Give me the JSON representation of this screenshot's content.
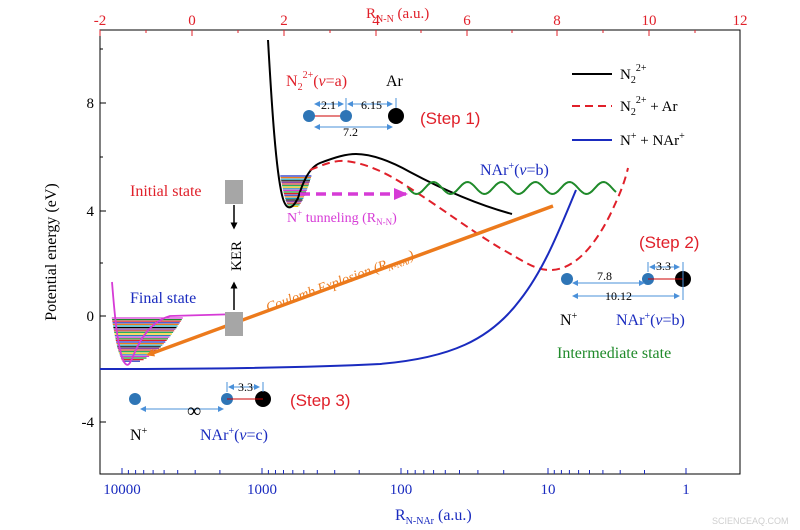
{
  "top_axis": {
    "label": "R",
    "label_sub": "N-N",
    "label_suffix": " (a.u.)",
    "color": "#e0202a",
    "ticks": [
      "-2",
      "0",
      "2",
      "4",
      "6",
      "8",
      "10",
      "12"
    ]
  },
  "bottom_axis": {
    "label": "R",
    "label_sub": "N-NAr",
    "label_suffix": " (a.u.)",
    "color": "#1a2bbf",
    "ticks": [
      "10000",
      "1000",
      "100",
      "10",
      "1"
    ]
  },
  "left_axis": {
    "label": "Potential energy (eV)",
    "ticks": [
      "8",
      "4",
      "0",
      "-4"
    ]
  },
  "legend": {
    "n2": {
      "base": "N",
      "sub": "2",
      "sup": "2+"
    },
    "n2ar": {
      "base": "N",
      "sub": "2",
      "sup": "2+",
      "suffix": " + Ar"
    },
    "nnar": {
      "text1": "N",
      "sup1": "+",
      "text2": " + NAr",
      "sup2": "+"
    }
  },
  "labels": {
    "step1": "(Step 1)",
    "step2": "(Step 2)",
    "step3": "(Step 3)",
    "initial_state": "Initial state",
    "final_state": "Final state",
    "intermediate_state": "Intermediate state",
    "kerl": "KER",
    "coulomb_main": "Coulomb Explosion (R",
    "coulomb_sub": "N-NAr",
    "coulomb_end": ")",
    "tunnel_main": "N",
    "tunnel_sup": "+",
    "tunnel_rest": " tunneling  (R",
    "tunnel_sub": "N-N",
    "tunnel_end": ")",
    "n2_state": {
      "base": "N",
      "sub": "2",
      "sup": "2+",
      "rest": "(",
      "v": "v",
      "eq": "=a)"
    },
    "ar": "Ar",
    "nar_b_top": {
      "base": "NAr",
      "sup": "+",
      "rest": "(",
      "v": "v",
      "eq": "=b)"
    },
    "nar_b_bottom": {
      "base": "NAr",
      "sup": "+",
      "rest": "(",
      "v": "v",
      "eq": "=b)"
    },
    "nar_c": {
      "base": "NAr",
      "sup": "+",
      "rest": "(",
      "v": "v",
      "eq": "=c)"
    },
    "n_plus_step2": {
      "base": "N",
      "sup": "+"
    },
    "n_plus_step3": {
      "base": "N",
      "sup": "+"
    }
  },
  "distances": {
    "step1_a": "2.1",
    "step1_b": "6.15",
    "step1_c": "7.2",
    "step2_a": "7.8",
    "step2_b": "3.3",
    "step2_c": "10.12",
    "step3_a": "3.3",
    "step3_inf": "∞"
  },
  "watermark": "SCIENCEAQ.COM",
  "colors": {
    "black_curve": "#000000",
    "red_curve": "#e0202a",
    "blue_curve": "#1a2bbf",
    "green_curve": "#1f8a2a",
    "orange_arrow": "#ec7a1c",
    "magenta_arrow": "#d63bd6",
    "nitrogen_atom": "#2e75b6",
    "argon_atom": "#000000",
    "dim_arrow": "#4a90d9",
    "step_text": "#e0202a",
    "kerl_box": "#a6a6a6"
  }
}
